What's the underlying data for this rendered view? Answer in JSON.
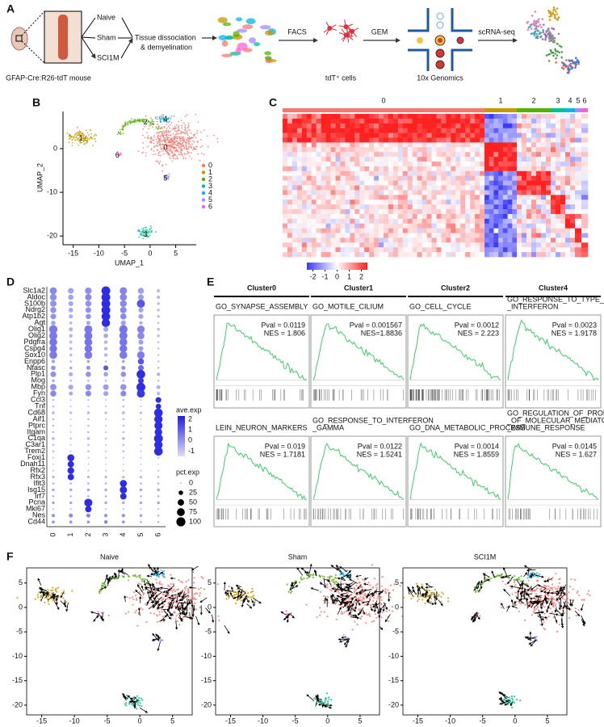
{
  "panel_a": {
    "letter": "A",
    "conditions": [
      "Naive",
      "Sham",
      "SCI1M"
    ],
    "mouse_label": "GFAP-Cre:R26-tdT mouse",
    "step_dissociation": [
      "Tissue dissociation",
      "& demyelination"
    ],
    "step_facs": "FACS",
    "cells_label": "tdT⁺ cells",
    "step_gem": "GEM",
    "platform_label": "10x Genomics",
    "step_seq": "scRNA-seq"
  },
  "panel_b": {
    "letter": "B",
    "type": "scatter",
    "xlabel": "UMAP_1",
    "ylabel": "UMAP_2",
    "xlim": [
      -17,
      9
    ],
    "ylim": [
      -22,
      8.5
    ],
    "xticks": [
      -15,
      -10,
      -5,
      0,
      5
    ],
    "yticks": [
      -20,
      -10,
      0
    ],
    "clusters": [
      {
        "name": "0",
        "color": "#F8766D",
        "x": 3.0,
        "y": 0.2
      },
      {
        "name": "1",
        "color": "#C49A00",
        "x": -13.5,
        "y": 2.3
      },
      {
        "name": "2",
        "color": "#53B400",
        "x": -0.9,
        "y": 6.0
      },
      {
        "name": "3",
        "color": "#00C094",
        "x": -0.9,
        "y": -19.7
      },
      {
        "name": "4",
        "color": "#00B6EB",
        "x": 3.0,
        "y": 6.7
      },
      {
        "name": "5",
        "color": "#A58AFF",
        "x": 3.0,
        "y": -6.9
      },
      {
        "name": "6",
        "color": "#FB61D7",
        "x": -6.4,
        "y": -1.6
      }
    ]
  },
  "panel_c": {
    "letter": "C",
    "type": "heatmap",
    "clusters": [
      "0",
      "1",
      "2",
      "3",
      "4",
      "5",
      "6"
    ],
    "colorbar_lim": [
      -2.5,
      2.5
    ],
    "colorbar_ticks": [
      -2,
      -1,
      0,
      1,
      2
    ]
  },
  "panel_d": {
    "letter": "D",
    "type": "dotplot",
    "clusters": [
      "0",
      "1",
      "2",
      "3",
      "4",
      "5",
      "6"
    ],
    "genes": [
      "Slc1a2",
      "Aldoc",
      "S100b",
      "Ndrg2",
      "Atp1b2",
      "Agt",
      "Olig1",
      "Olig2",
      "Pdgfra",
      "Cspg4",
      "Sox10",
      "Enpp6",
      "Nfasc",
      "Plp1",
      "Mog",
      "Mbp",
      "Fyn",
      "Ccl3",
      "Tnf",
      "Cd68",
      "Aif1",
      "Ptprc",
      "Itgam",
      "C1qa",
      "C3ar1",
      "Trem2",
      "Foxj1",
      "Dnah11",
      "Rfx2",
      "Rfx3",
      "Ifit3",
      "Isg15",
      "Irf7",
      "Pcna",
      "Mki67",
      "Nes",
      "Cd44"
    ],
    "pct": [
      [
        60,
        40,
        55,
        95,
        65,
        45,
        15
      ],
      [
        55,
        35,
        50,
        95,
        60,
        40,
        15
      ],
      [
        50,
        30,
        45,
        95,
        55,
        80,
        10
      ],
      [
        45,
        25,
        40,
        95,
        50,
        30,
        10
      ],
      [
        40,
        20,
        35,
        90,
        45,
        30,
        10
      ],
      [
        25,
        10,
        20,
        85,
        30,
        15,
        5
      ],
      [
        85,
        20,
        80,
        30,
        85,
        70,
        10
      ],
      [
        80,
        15,
        80,
        25,
        80,
        60,
        10
      ],
      [
        75,
        10,
        75,
        15,
        75,
        30,
        5
      ],
      [
        70,
        10,
        70,
        15,
        70,
        30,
        5
      ],
      [
        75,
        10,
        75,
        15,
        75,
        70,
        5
      ],
      [
        15,
        5,
        10,
        5,
        10,
        45,
        5
      ],
      [
        25,
        10,
        20,
        30,
        20,
        40,
        5
      ],
      [
        40,
        20,
        35,
        25,
        35,
        90,
        15
      ],
      [
        10,
        5,
        5,
        5,
        5,
        40,
        5
      ],
      [
        50,
        30,
        45,
        40,
        45,
        95,
        20
      ],
      [
        45,
        20,
        40,
        30,
        40,
        80,
        15
      ],
      [
        5,
        3,
        3,
        3,
        5,
        3,
        40
      ],
      [
        5,
        3,
        3,
        3,
        5,
        3,
        35
      ],
      [
        10,
        8,
        10,
        8,
        10,
        8,
        90
      ],
      [
        5,
        3,
        5,
        3,
        5,
        3,
        85
      ],
      [
        5,
        3,
        5,
        3,
        5,
        3,
        80
      ],
      [
        5,
        3,
        5,
        3,
        5,
        3,
        70
      ],
      [
        10,
        5,
        10,
        5,
        10,
        5,
        95
      ],
      [
        5,
        3,
        5,
        3,
        5,
        3,
        85
      ],
      [
        5,
        3,
        5,
        3,
        5,
        3,
        90
      ],
      [
        3,
        60,
        3,
        3,
        3,
        3,
        3
      ],
      [
        2,
        50,
        2,
        2,
        2,
        2,
        2
      ],
      [
        3,
        55,
        3,
        3,
        3,
        3,
        3
      ],
      [
        8,
        50,
        8,
        8,
        8,
        8,
        5
      ],
      [
        5,
        5,
        5,
        5,
        60,
        5,
        5
      ],
      [
        10,
        10,
        10,
        10,
        65,
        10,
        10
      ],
      [
        5,
        5,
        5,
        5,
        50,
        5,
        5
      ],
      [
        10,
        10,
        80,
        10,
        10,
        10,
        10
      ],
      [
        3,
        3,
        50,
        3,
        3,
        3,
        3
      ],
      [
        15,
        20,
        20,
        15,
        15,
        10,
        5
      ],
      [
        10,
        10,
        10,
        15,
        10,
        5,
        5
      ]
    ],
    "ave": [
      [
        0.2,
        -0.3,
        0.1,
        2.0,
        0.3,
        -0.2,
        -0.8
      ],
      [
        0.1,
        -0.3,
        0.2,
        2.0,
        0.3,
        -0.2,
        -0.8
      ],
      [
        0.0,
        -0.4,
        0.0,
        2.0,
        0.2,
        1.2,
        -0.8
      ],
      [
        0.0,
        -0.4,
        0.0,
        2.0,
        0.2,
        -0.3,
        -0.8
      ],
      [
        0.0,
        -0.5,
        0.0,
        2.0,
        0.2,
        -0.3,
        -0.8
      ],
      [
        -0.3,
        -0.6,
        -0.3,
        2.0,
        -0.2,
        -0.5,
        -0.8
      ],
      [
        0.5,
        -0.6,
        0.5,
        -0.4,
        0.6,
        0.3,
        -0.8
      ],
      [
        0.5,
        -0.6,
        0.6,
        -0.4,
        0.6,
        0.2,
        -0.8
      ],
      [
        0.6,
        -0.7,
        0.6,
        -0.6,
        0.6,
        -0.2,
        -0.8
      ],
      [
        0.6,
        -0.7,
        0.6,
        -0.6,
        0.6,
        -0.2,
        -0.8
      ],
      [
        0.5,
        -0.7,
        0.5,
        -0.6,
        0.5,
        0.4,
        -0.8
      ],
      [
        -0.3,
        -0.6,
        -0.3,
        -0.6,
        -0.3,
        1.2,
        -0.8
      ],
      [
        0.0,
        -0.5,
        0.0,
        1.2,
        0.0,
        0.8,
        -0.8
      ],
      [
        0.0,
        -0.5,
        0.0,
        -0.3,
        0.0,
        2.0,
        -0.6
      ],
      [
        -0.4,
        -0.6,
        -0.5,
        -0.6,
        -0.5,
        1.8,
        -0.8
      ],
      [
        0.0,
        -0.4,
        0.0,
        -0.2,
        0.0,
        2.0,
        -0.6
      ],
      [
        0.2,
        -0.5,
        0.2,
        -0.3,
        0.2,
        1.8,
        -0.7
      ],
      [
        -0.7,
        -0.7,
        -0.7,
        -0.7,
        -0.6,
        -0.7,
        2.0
      ],
      [
        -0.7,
        -0.7,
        -0.7,
        -0.7,
        -0.6,
        -0.7,
        2.0
      ],
      [
        -0.7,
        -0.7,
        -0.7,
        -0.7,
        -0.6,
        -0.7,
        2.0
      ],
      [
        -0.7,
        -0.7,
        -0.7,
        -0.7,
        -0.6,
        -0.7,
        2.0
      ],
      [
        -0.7,
        -0.7,
        -0.7,
        -0.7,
        -0.6,
        -0.7,
        2.0
      ],
      [
        -0.7,
        -0.7,
        -0.7,
        -0.7,
        -0.6,
        -0.7,
        2.0
      ],
      [
        -0.7,
        -0.7,
        -0.7,
        -0.7,
        -0.6,
        -0.7,
        2.0
      ],
      [
        -0.7,
        -0.7,
        -0.7,
        -0.7,
        -0.6,
        -0.7,
        2.0
      ],
      [
        -0.7,
        -0.7,
        -0.7,
        -0.7,
        -0.6,
        -0.7,
        2.0
      ],
      [
        -0.6,
        2.0,
        -0.6,
        -0.6,
        -0.6,
        -0.6,
        -0.6
      ],
      [
        -0.6,
        2.0,
        -0.6,
        -0.6,
        -0.6,
        -0.6,
        -0.6
      ],
      [
        -0.6,
        2.0,
        -0.6,
        -0.6,
        -0.6,
        -0.6,
        -0.6
      ],
      [
        -0.6,
        2.0,
        -0.6,
        -0.6,
        -0.6,
        -0.6,
        -0.6
      ],
      [
        -0.5,
        -0.5,
        -0.5,
        -0.5,
        2.0,
        -0.5,
        -0.5
      ],
      [
        -0.5,
        -0.5,
        -0.5,
        -0.5,
        2.0,
        -0.5,
        -0.5
      ],
      [
        -0.5,
        -0.5,
        -0.5,
        -0.5,
        2.0,
        -0.5,
        -0.5
      ],
      [
        -0.4,
        -0.4,
        2.0,
        -0.4,
        -0.4,
        -0.4,
        -0.4
      ],
      [
        -0.4,
        -0.4,
        2.0,
        -0.4,
        -0.4,
        -0.4,
        -0.4
      ],
      [
        0.0,
        0.2,
        0.2,
        0.0,
        0.0,
        -0.3,
        -0.6
      ],
      [
        0.0,
        0.0,
        0.0,
        0.3,
        0.0,
        -0.3,
        -0.6
      ]
    ],
    "ave_title": "ave.exp",
    "ave_lim": [
      -1.5,
      2.3
    ],
    "ave_ticks": [
      2,
      1,
      0,
      -1
    ],
    "pct_title": "pct.exp",
    "pct_ticks": [
      0,
      25,
      50,
      75,
      100
    ]
  },
  "panel_e": {
    "letter": "E",
    "columns": [
      {
        "title": "Cluster0",
        "sets": [
          {
            "name": [
              "GO_SYNAPSE_ASSEMBLY"
            ],
            "pval": "Pval = 0.0119",
            "nes": "NES = 1.806"
          },
          {
            "name": [
              "LEIN_NEURON_MARKERS"
            ],
            "pval": "Pval = 0.019",
            "nes": "NES = 1.7181"
          }
        ]
      },
      {
        "title": "Cluster1",
        "sets": [
          {
            "name": [
              "GO_MOTILE_CILIUM"
            ],
            "pval": "Pval = 0.001567",
            "nes": "NES=1.8836"
          },
          {
            "name": [
              "GO_RESPONSE_TO_INTERFERON",
              "_GAMMA"
            ],
            "pval": "Pval = 0.0122",
            "nes": "NES = 1.5241"
          }
        ]
      },
      {
        "title": "Cluster2",
        "sets": [
          {
            "name": [
              "GO_CELL_CYCLE"
            ],
            "pval": "Pval = 0.0012",
            "nes": "NES = 2.223"
          },
          {
            "name": [
              "GO_DNA_METABOLIC_PROCESS"
            ],
            "pval": "Pval = 0.0014",
            "nes": "NES = 1.8559"
          }
        ]
      },
      {
        "title": "Cluster4",
        "sets": [
          {
            "name": [
              "GO_RESPONSE_TO_TYPE_I",
              "_INTERFERON"
            ],
            "pval": "Pval = 0.0023",
            "nes": "NES = 1.9178"
          },
          {
            "name": [
              "GO_REGULATION_OF_PRODUCTION",
              "_OF_MOLECULAR_MEDIATOR_OF",
              "_IMMUNE_RESPONSE"
            ],
            "pval": "Pval = 0.0145",
            "nes": "NES = 1.627"
          }
        ]
      }
    ]
  },
  "panel_f": {
    "letter": "F",
    "type": "velocity",
    "titles": [
      "Naive",
      "Sham",
      "SCI1M"
    ],
    "xlim": [
      -17.3,
      8
    ],
    "ylim": [
      -22,
      8.1
    ],
    "xticks": [
      -15,
      -10,
      -5,
      0,
      5
    ],
    "yticks": [
      -20,
      -15,
      -10,
      -5,
      0,
      5
    ]
  }
}
